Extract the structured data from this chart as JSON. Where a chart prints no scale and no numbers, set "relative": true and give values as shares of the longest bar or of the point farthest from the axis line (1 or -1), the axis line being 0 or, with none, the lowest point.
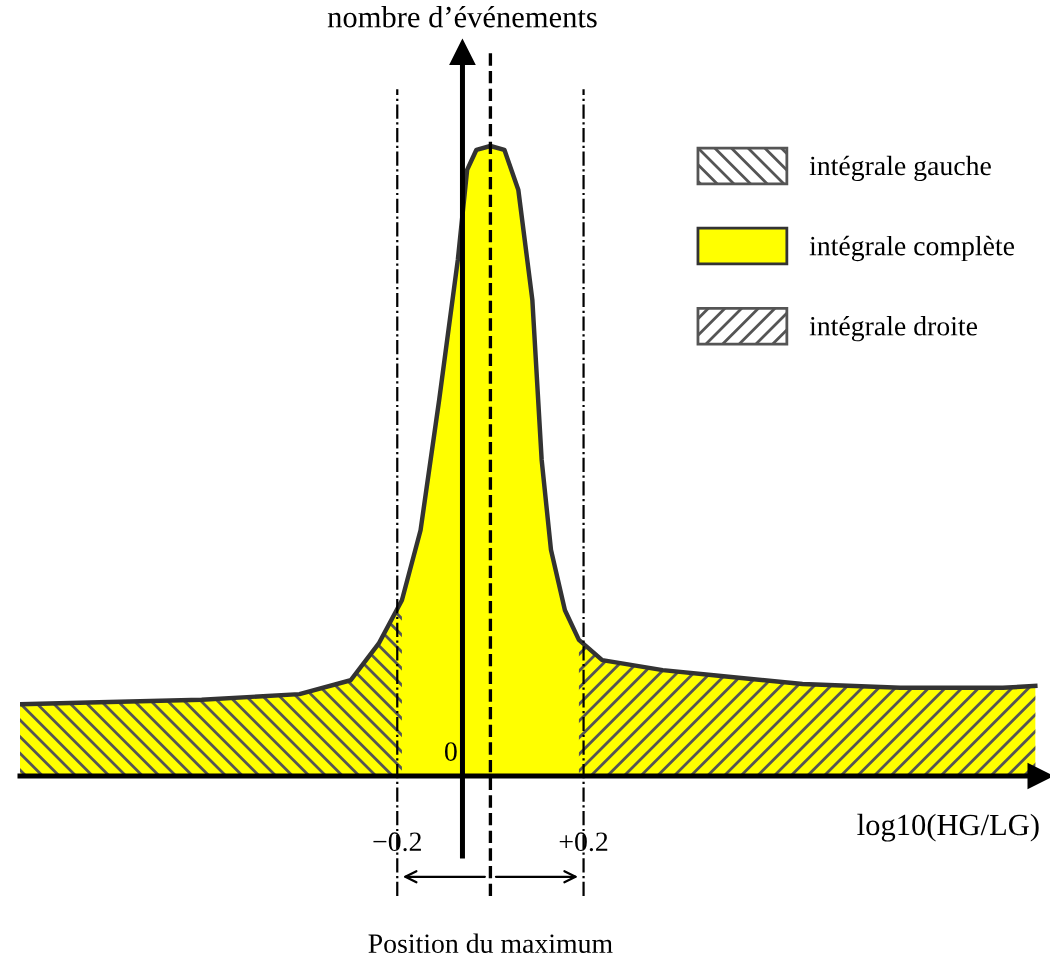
{
  "chart_data": {
    "type": "area",
    "relative": true,
    "xlabel": "log10(HG/LG)",
    "ylabel": "nombre d’événements",
    "x": [
      -1.01,
      -0.84,
      -0.62,
      -0.41,
      -0.3,
      -0.24,
      -0.19,
      -0.15,
      -0.11,
      -0.07,
      -0.05,
      -0.03,
      0.0,
      0.03,
      0.06,
      0.09,
      0.11,
      0.13,
      0.16,
      0.19,
      0.24,
      0.37,
      0.49,
      0.67,
      0.88,
      1.1,
      1.17
    ],
    "xlim": [
      -1.01,
      1.18
    ],
    "xticks": [
      {
        "value": -0.2,
        "label": "−0.2"
      },
      {
        "value": 0.2,
        "label": "+0.2"
      }
    ],
    "tick_labels": "x",
    "legend": "right",
    "series": [
      {
        "name": "intégrale gauche",
        "color": "#555555",
        "x": [
          -1.01,
          -0.84,
          -0.62,
          -0.41,
          -0.3,
          -0.24,
          -0.19
        ],
        "values": [
          0.114,
          0.117,
          0.121,
          0.13,
          0.152,
          0.21,
          0.279
        ]
      },
      {
        "name": "intégrale complète",
        "color": "#ffff00",
        "values": [
          0.114,
          0.117,
          0.121,
          0.13,
          0.152,
          0.21,
          0.279,
          0.39,
          0.597,
          0.819,
          0.962,
          0.994,
          1,
          0.994,
          0.93,
          0.756,
          0.502,
          0.359,
          0.263,
          0.216,
          0.184,
          0.168,
          0.159,
          0.146,
          0.14,
          0.14,
          0.143
        ]
      },
      {
        "name": "intégrale droite",
        "color": "#555555",
        "x": [
          0.19,
          0.24,
          0.37,
          0.49,
          0.67,
          0.88,
          1.1,
          1.17
        ],
        "values": [
          0.216,
          0.184,
          0.168,
          0.159,
          0.146,
          0.14,
          0.14,
          0.143
        ]
      }
    ],
    "ref_lines": [
      {
        "axis": "x",
        "value": -0.06,
        "label": "0",
        "line_style": "solid"
      },
      {
        "axis": "x",
        "value": -0.2,
        "line_style": "dashdot"
      },
      {
        "axis": "x",
        "value": 0,
        "label": "Position du maximum",
        "line_style": "dashed"
      },
      {
        "axis": "x",
        "value": 0.2,
        "line_style": "dashdot"
      }
    ]
  }
}
